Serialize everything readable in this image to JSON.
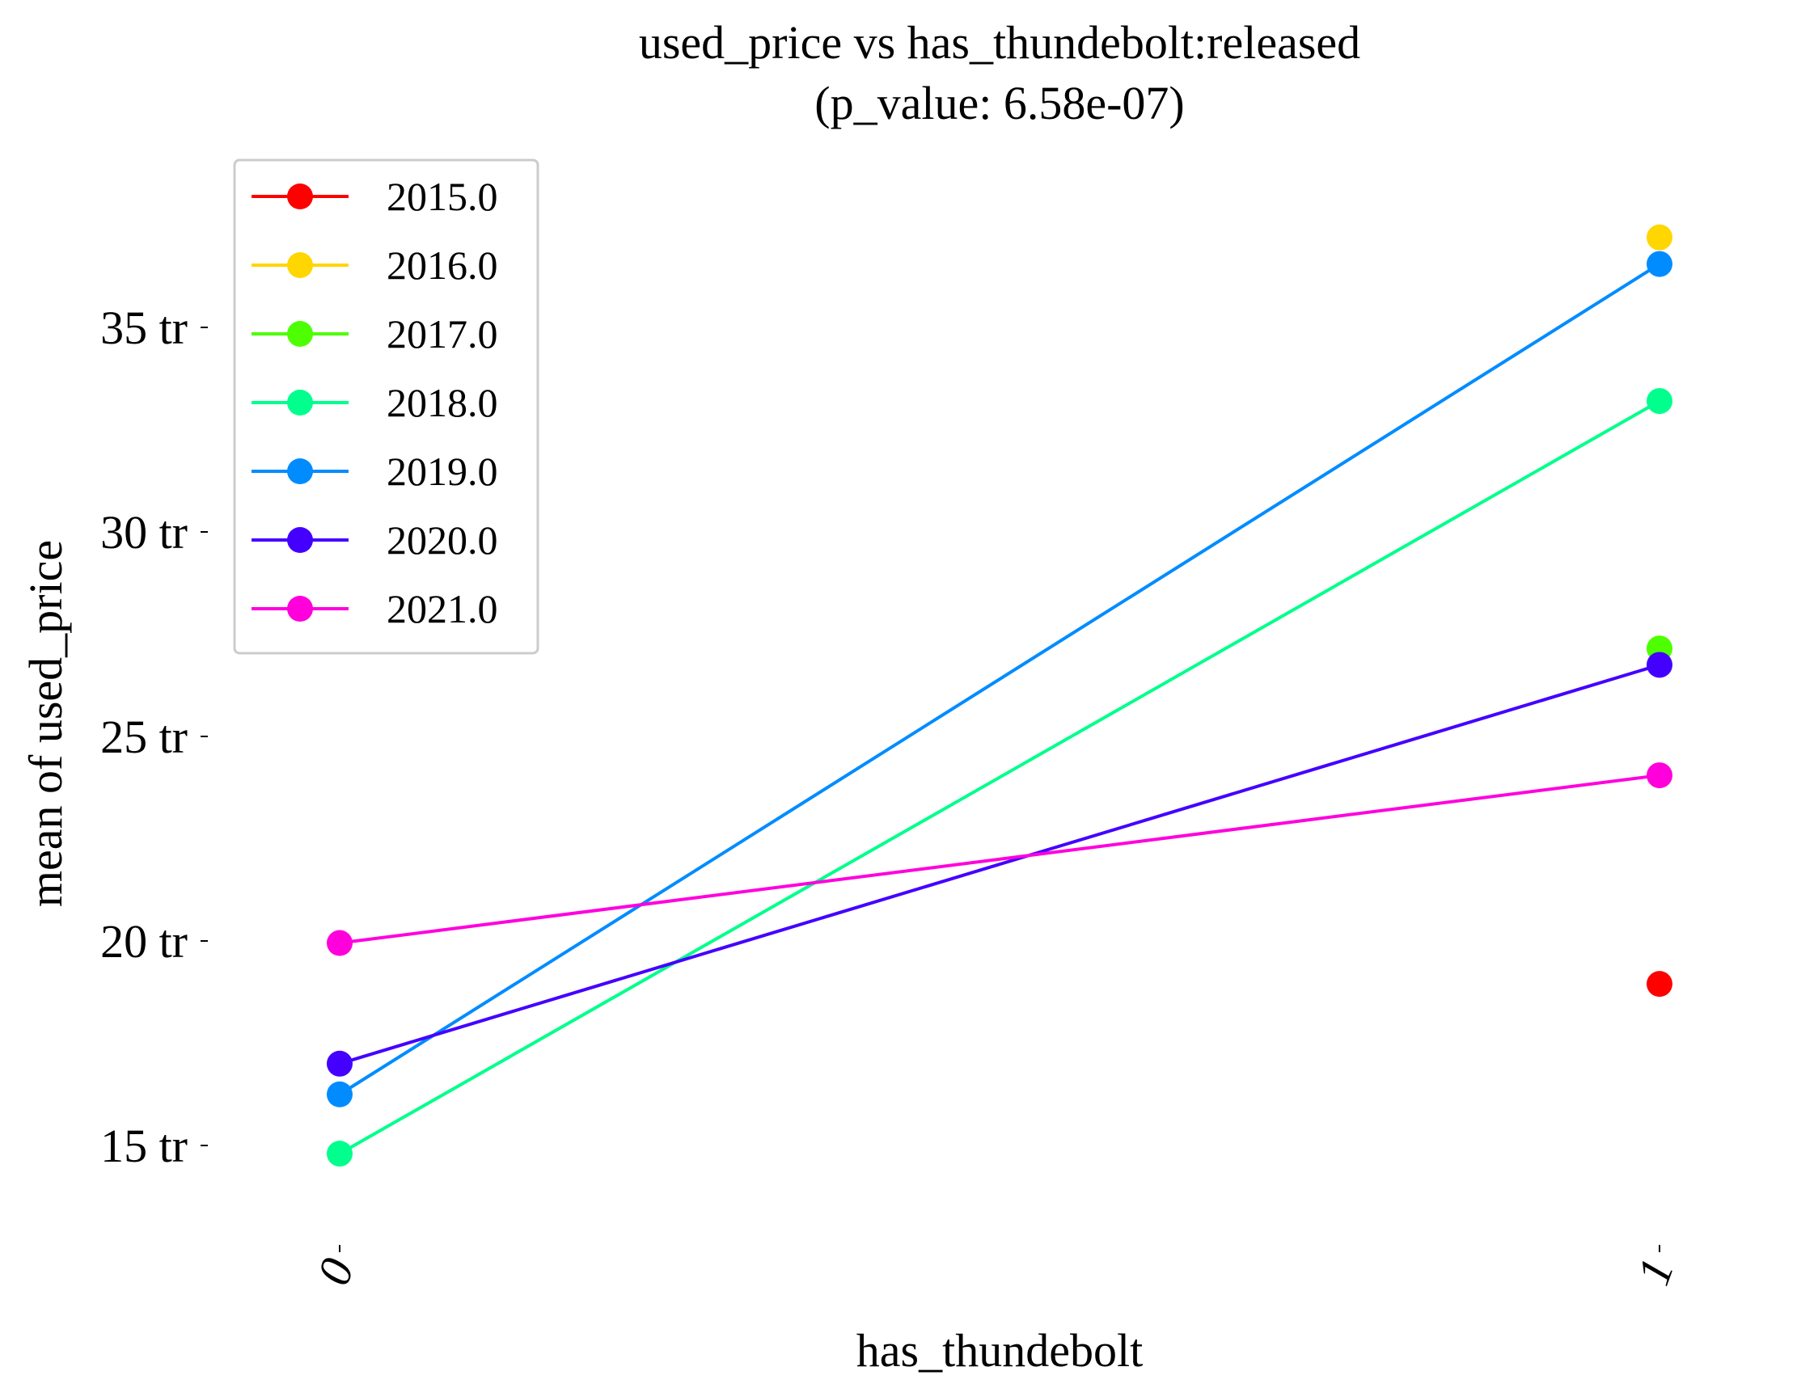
{
  "chart_data": {
    "type": "line",
    "title": "used_price vs has_thundebolt:released",
    "subtitle": "(p_value: 6.58e-07)",
    "xlabel": "has_thundebolt",
    "ylabel": "mean of used_price",
    "categories": [
      "0",
      "1"
    ],
    "y_unit_suffix": " tr",
    "y_ticks": [
      15,
      20,
      25,
      30,
      35
    ],
    "ylim": [
      12.2,
      38.8
    ],
    "grid": false,
    "legend_position": "top-left",
    "series": [
      {
        "name": "2015.0",
        "color": "#ff0000",
        "values": [
          null,
          18.95
        ]
      },
      {
        "name": "2016.0",
        "color": "#ffd600",
        "values": [
          null,
          37.2
        ]
      },
      {
        "name": "2017.0",
        "color": "#4dff00",
        "values": [
          null,
          27.15
        ]
      },
      {
        "name": "2018.0",
        "color": "#00ff8c",
        "values": [
          14.8,
          33.2
        ]
      },
      {
        "name": "2019.0",
        "color": "#008cff",
        "values": [
          16.25,
          36.55
        ]
      },
      {
        "name": "2020.0",
        "color": "#4400ff",
        "values": [
          17.0,
          26.75
        ]
      },
      {
        "name": "2021.0",
        "color": "#ff00dd",
        "values": [
          19.95,
          24.05
        ]
      }
    ]
  }
}
